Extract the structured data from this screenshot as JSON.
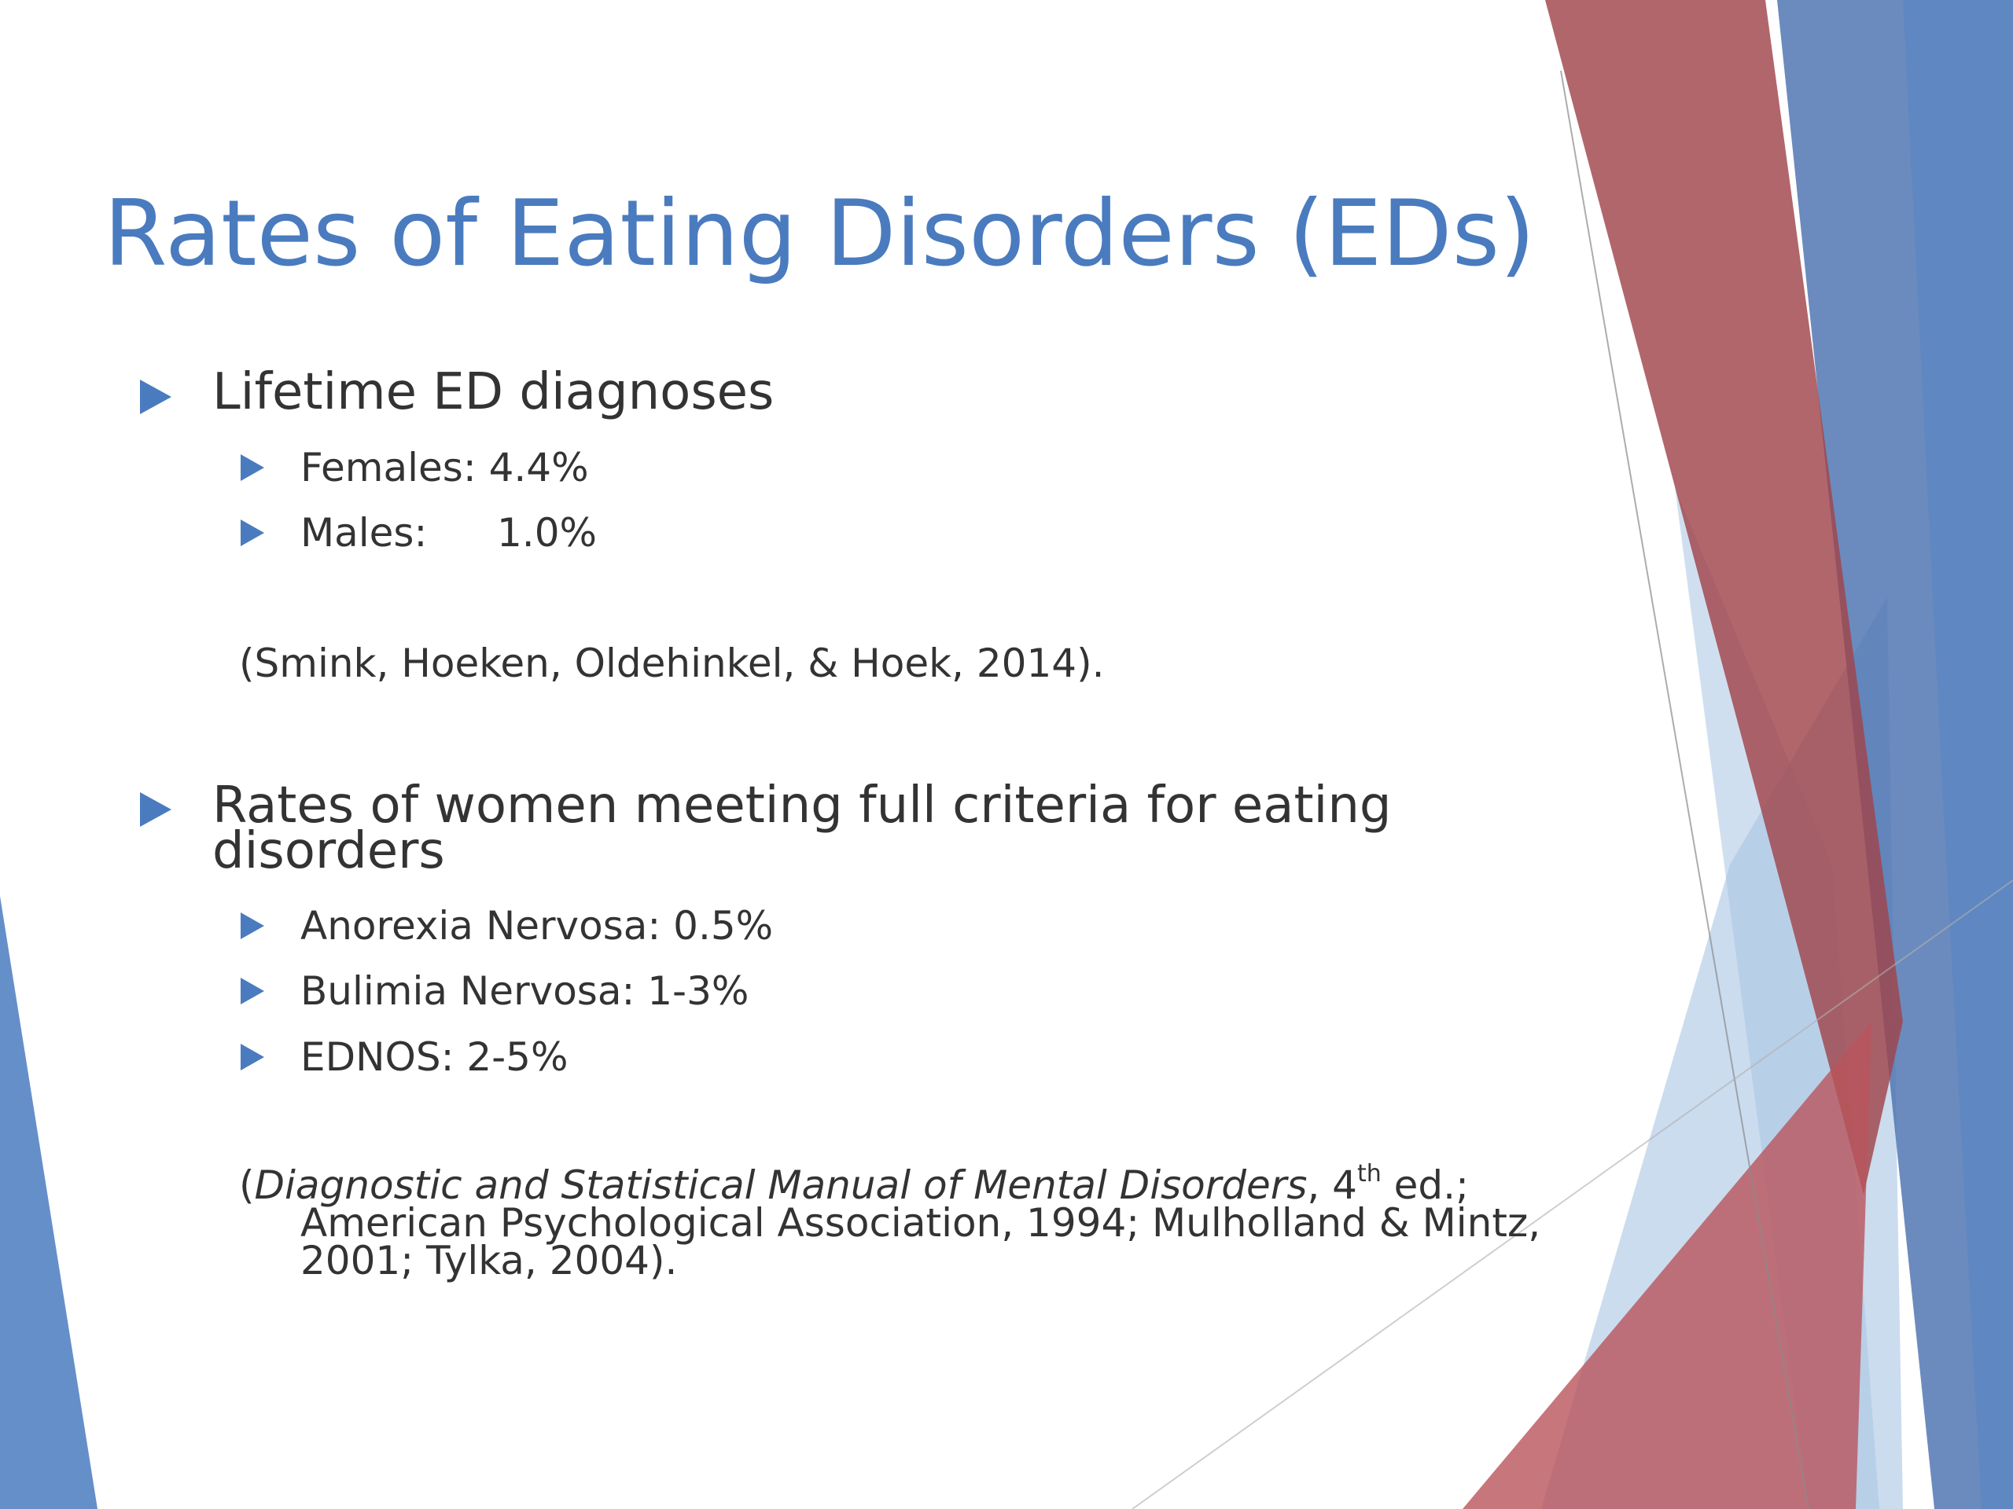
{
  "title": "Rates of Eating Disorders (EDs)",
  "section1": {
    "heading": "Lifetime ED diagnoses",
    "items": [
      {
        "label": "Females:",
        "value": "4.4%"
      },
      {
        "label": "Males:",
        "value": "1.0%"
      }
    ],
    "citation": "(Smink, Hoeken, Oldehinkel, & Hoek, 2014)."
  },
  "section2": {
    "heading_line1": "Rates of women meeting full criteria for eating",
    "heading_line2": "disorders",
    "items": [
      "Anorexia Nervosa: 0.5%",
      "Bulimia Nervosa: 1-3%",
      "EDNOS: 2-5%"
    ],
    "citation": {
      "open": "(",
      "italic": "Diagnostic and Statistical Manual of Mental Disorders",
      "after_italic": ", 4",
      "sup": "th",
      "after_sup": " ed.;",
      "line2": "American Psychological Association, 1994; Mulholland & Mintz,",
      "line3": "2001; Tylka, 2004)."
    }
  },
  "colors": {
    "title": "#4a7bbf",
    "bullet": "#4a7bbf",
    "text": "#333333",
    "red": "#a0444a",
    "blue": "#4a7bbf",
    "light_blue": "#a9c4e2"
  }
}
